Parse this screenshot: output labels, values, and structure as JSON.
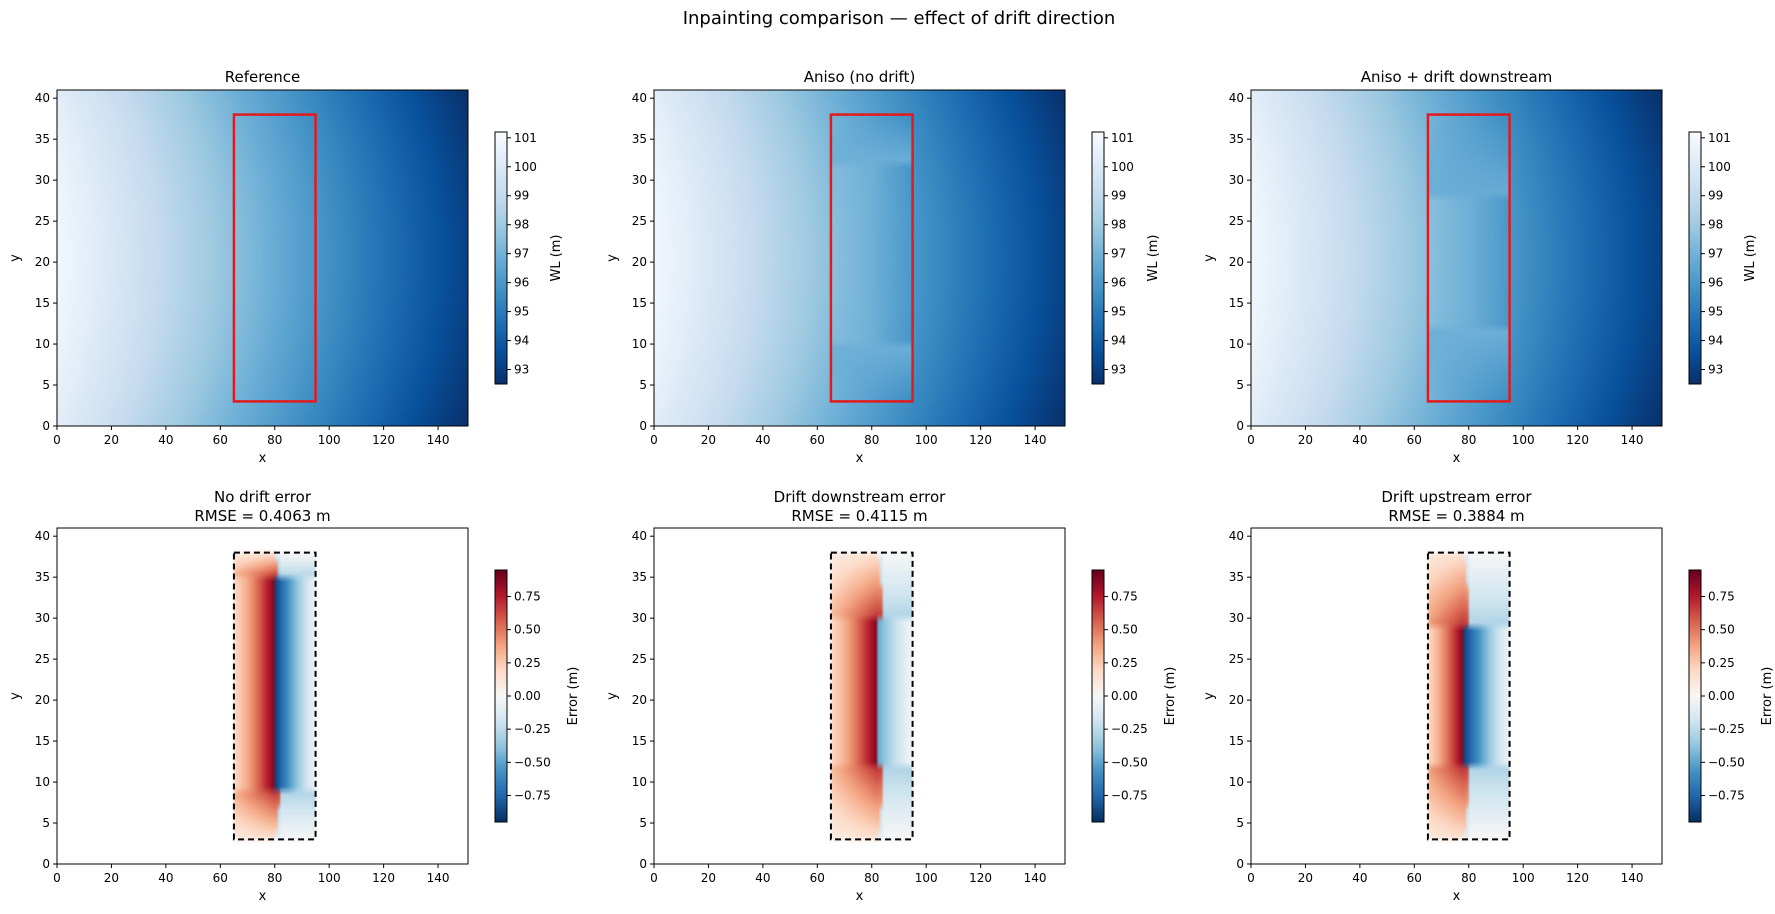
{
  "figure": {
    "title": "Inpainting comparison — effect of drift direction"
  },
  "colors": {
    "mask_outline_top": "#e31a1c",
    "mask_outline_bottom": "#000000",
    "wl_colormap": "Blues_r",
    "error_colormap": "RdBu_r"
  },
  "chart_data": [
    {
      "type": "heatmap",
      "title": "Reference",
      "xlabel": "x",
      "ylabel": "y",
      "xlim": [
        0,
        151
      ],
      "ylim": [
        0,
        41
      ],
      "xticks": [
        0,
        20,
        40,
        60,
        80,
        100,
        120,
        140
      ],
      "yticks": [
        0,
        5,
        10,
        15,
        20,
        25,
        30,
        35,
        40
      ],
      "mask_rect": [
        65,
        95,
        3,
        38
      ],
      "mask_style": "solid-red",
      "field": "reference",
      "colorbar": {
        "label": "WL (m)",
        "range": [
          92.5,
          101.2
        ],
        "ticks": [
          93,
          94,
          95,
          96,
          97,
          98,
          99,
          100,
          101
        ],
        "ticklabels": [
          "93",
          "94",
          "95",
          "96",
          "97",
          "98",
          "99",
          "100",
          "101"
        ]
      }
    },
    {
      "type": "heatmap",
      "title": "Aniso (no drift)",
      "xlabel": "x",
      "ylabel": "y",
      "xlim": [
        0,
        151
      ],
      "ylim": [
        0,
        41
      ],
      "xticks": [
        0,
        20,
        40,
        60,
        80,
        100,
        120,
        140
      ],
      "yticks": [
        0,
        5,
        10,
        15,
        20,
        25,
        30,
        35,
        40
      ],
      "mask_rect": [
        65,
        95,
        3,
        38
      ],
      "mask_style": "solid-red",
      "field": "inpaint_nodrift",
      "colorbar": {
        "label": "WL (m)",
        "range": [
          92.5,
          101.2
        ],
        "ticks": [
          93,
          94,
          95,
          96,
          97,
          98,
          99,
          100,
          101
        ],
        "ticklabels": [
          "93",
          "94",
          "95",
          "96",
          "97",
          "98",
          "99",
          "100",
          "101"
        ]
      }
    },
    {
      "type": "heatmap",
      "title": "Aniso + drift downstream",
      "xlabel": "x",
      "ylabel": "y",
      "xlim": [
        0,
        151
      ],
      "ylim": [
        0,
        41
      ],
      "xticks": [
        0,
        20,
        40,
        60,
        80,
        100,
        120,
        140
      ],
      "yticks": [
        0,
        5,
        10,
        15,
        20,
        25,
        30,
        35,
        40
      ],
      "mask_rect": [
        65,
        95,
        3,
        38
      ],
      "mask_style": "solid-red",
      "field": "inpaint_downstream",
      "colorbar": {
        "label": "WL (m)",
        "range": [
          92.5,
          101.2
        ],
        "ticks": [
          93,
          94,
          95,
          96,
          97,
          98,
          99,
          100,
          101
        ],
        "ticklabels": [
          "93",
          "94",
          "95",
          "96",
          "97",
          "98",
          "99",
          "100",
          "101"
        ]
      }
    },
    {
      "type": "heatmap",
      "title": "No drift error",
      "subtitle": "RMSE = 0.4063 m",
      "xlabel": "x",
      "ylabel": "y",
      "xlim": [
        0,
        151
      ],
      "ylim": [
        0,
        41
      ],
      "xticks": [
        0,
        20,
        40,
        60,
        80,
        100,
        120,
        140
      ],
      "yticks": [
        0,
        5,
        10,
        15,
        20,
        25,
        30,
        35,
        40
      ],
      "mask_rect": [
        65,
        95,
        3,
        38
      ],
      "mask_style": "dashed-black",
      "field": "error_nodrift",
      "colorbar": {
        "label": "Error (m)",
        "range": [
          -0.95,
          0.95
        ],
        "ticks": [
          -0.75,
          -0.5,
          -0.25,
          0,
          0.25,
          0.5,
          0.75
        ],
        "ticklabels": [
          "−0.75",
          "−0.50",
          "−0.25",
          "0.00",
          "0.25",
          "0.50",
          "0.75"
        ]
      }
    },
    {
      "type": "heatmap",
      "title": "Drift downstream error",
      "subtitle": "RMSE = 0.4115 m",
      "xlabel": "x",
      "ylabel": "y",
      "xlim": [
        0,
        151
      ],
      "ylim": [
        0,
        41
      ],
      "xticks": [
        0,
        20,
        40,
        60,
        80,
        100,
        120,
        140
      ],
      "yticks": [
        0,
        5,
        10,
        15,
        20,
        25,
        30,
        35,
        40
      ],
      "mask_rect": [
        65,
        95,
        3,
        38
      ],
      "mask_style": "dashed-black",
      "field": "error_downstream",
      "colorbar": {
        "label": "Error (m)",
        "range": [
          -0.95,
          0.95
        ],
        "ticks": [
          -0.75,
          -0.5,
          -0.25,
          0,
          0.25,
          0.5,
          0.75
        ],
        "ticklabels": [
          "−0.75",
          "−0.50",
          "−0.25",
          "0.00",
          "0.25",
          "0.50",
          "0.75"
        ]
      }
    },
    {
      "type": "heatmap",
      "title": "Drift upstream error",
      "subtitle": "RMSE = 0.3884 m",
      "xlabel": "x",
      "ylabel": "y",
      "xlim": [
        0,
        151
      ],
      "ylim": [
        0,
        41
      ],
      "xticks": [
        0,
        20,
        40,
        60,
        80,
        100,
        120,
        140
      ],
      "yticks": [
        0,
        5,
        10,
        15,
        20,
        25,
        30,
        35,
        40
      ],
      "mask_rect": [
        65,
        95,
        3,
        38
      ],
      "mask_style": "dashed-black",
      "field": "error_upstream",
      "colorbar": {
        "label": "Error (m)",
        "range": [
          -0.95,
          0.95
        ],
        "ticks": [
          -0.75,
          -0.5,
          -0.25,
          0,
          0.25,
          0.5,
          0.75
        ],
        "ticklabels": [
          "−0.75",
          "−0.50",
          "−0.25",
          "0.00",
          "0.25",
          "0.50",
          "0.75"
        ]
      }
    }
  ]
}
